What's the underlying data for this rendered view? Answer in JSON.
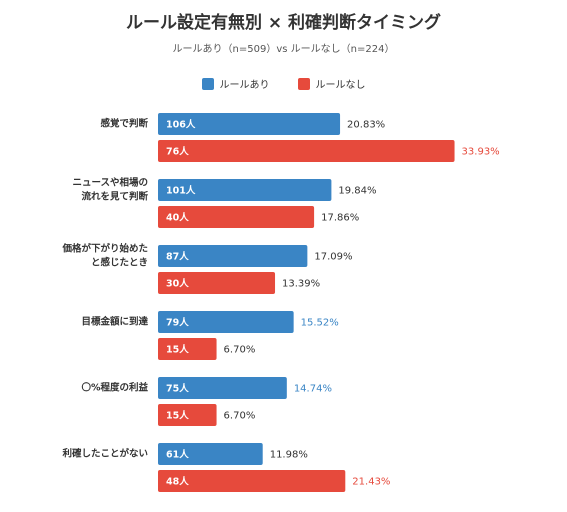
{
  "colors": {
    "with_rules": "#3a85c5",
    "without_rules": "#e64a3c",
    "text": "#333333"
  },
  "chart_data": {
    "type": "bar",
    "orientation": "horizontal",
    "title": "ルール設定有無別 × 利確判断タイミング",
    "subtitle": "ルールあり（n=509）vs ルールなし（n=224）",
    "legend_position": "top",
    "grid": false,
    "xlim": [
      0,
      35
    ],
    "categories": [
      [
        "感覚で判断"
      ],
      [
        "ニュースや相場の",
        "流れを見て判断"
      ],
      [
        "価格が下がり始めた",
        "と感じたとき"
      ],
      [
        "目標金額に到達"
      ],
      [
        "〇%程度の利益"
      ],
      [
        "利確したことがない"
      ]
    ],
    "series": [
      {
        "name": "ルールあり",
        "color": "#3a85c5",
        "values": [
          20.83,
          19.84,
          17.09,
          15.52,
          14.74,
          11.98
        ],
        "value_labels": [
          "20.83%",
          "19.84%",
          "17.09%",
          "15.52%",
          "14.74%",
          "11.98%"
        ],
        "counts": [
          "106人",
          "101人",
          "87人",
          "79人",
          "75人",
          "61人"
        ],
        "highlight": [
          false,
          false,
          false,
          true,
          true,
          false
        ]
      },
      {
        "name": "ルールなし",
        "color": "#e64a3c",
        "values": [
          33.93,
          17.86,
          13.39,
          6.7,
          6.7,
          21.43
        ],
        "value_labels": [
          "33.93%",
          "17.86%",
          "13.39%",
          "6.70%",
          "6.70%",
          "21.43%"
        ],
        "counts": [
          "76人",
          "40人",
          "30人",
          "15人",
          "15人",
          "48人"
        ],
        "highlight": [
          true,
          false,
          false,
          false,
          false,
          true
        ]
      }
    ]
  }
}
